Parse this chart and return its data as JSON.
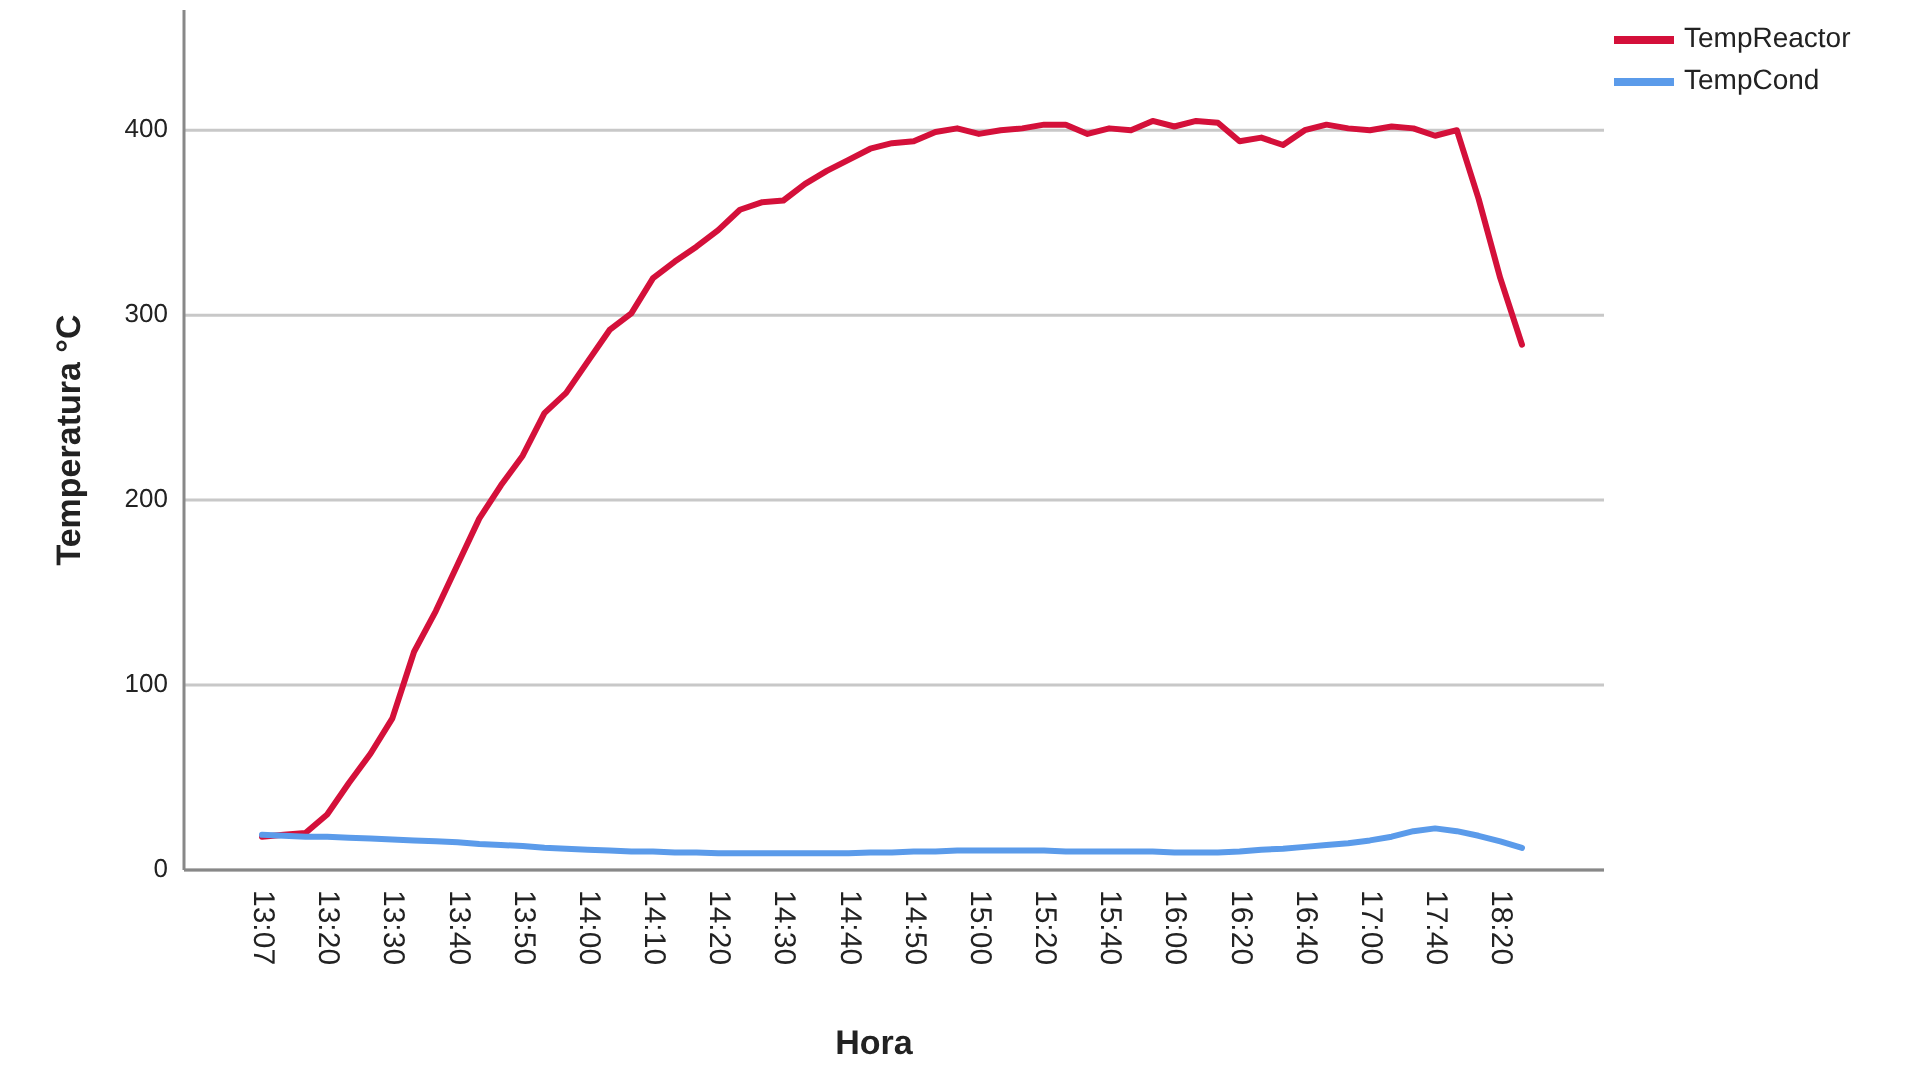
{
  "chart_data": {
    "type": "line",
    "xlabel": "Hora",
    "ylabel": "Temperatura °C",
    "categories": [
      "13:07",
      null,
      null,
      "13:20",
      null,
      null,
      "13:30",
      null,
      null,
      "13:40",
      null,
      null,
      "13:50",
      null,
      null,
      "14:00",
      null,
      null,
      "14:10",
      null,
      null,
      "14:20",
      null,
      null,
      "14:30",
      null,
      null,
      "14:40",
      null,
      null,
      "14:50",
      null,
      null,
      "15:00",
      null,
      null,
      "15:20",
      null,
      null,
      "15:40",
      null,
      null,
      "16:00",
      null,
      null,
      "16:20",
      null,
      null,
      "16:40",
      null,
      null,
      "17:00",
      null,
      null,
      "17:40",
      null,
      null,
      "18:20",
      null
    ],
    "series": [
      {
        "name": "TempReactor",
        "color": "#d4103a",
        "values": [
          18,
          19,
          20,
          30,
          47,
          63,
          82,
          118,
          140,
          165,
          190,
          208,
          224,
          247,
          258,
          275,
          292,
          301,
          320,
          329,
          337,
          346,
          357,
          361,
          362,
          371,
          378,
          384,
          390,
          393,
          394,
          399,
          401,
          398,
          400,
          401,
          403,
          403,
          398,
          401,
          400,
          405,
          402,
          405,
          404,
          394,
          396,
          392,
          400,
          403,
          401,
          400,
          402,
          401,
          397,
          400,
          363,
          320,
          284
        ]
      },
      {
        "name": "TempCond",
        "color": "#5b9bea",
        "values": [
          19,
          18.5,
          18,
          18,
          17.5,
          17,
          16.5,
          16,
          15.5,
          15,
          14,
          13.5,
          13,
          12,
          11.5,
          11,
          10.5,
          10,
          10,
          9.5,
          9.5,
          9,
          9,
          9,
          9,
          9,
          9,
          9,
          9.5,
          9.5,
          10,
          10,
          10.5,
          10.5,
          10.5,
          10.5,
          10.5,
          10,
          10,
          10,
          10,
          10,
          9.5,
          9.5,
          9.5,
          10,
          11,
          11.5,
          12.5,
          13.5,
          14.5,
          16,
          18,
          21,
          22.5,
          21,
          18.5,
          15.5,
          12
        ]
      }
    ],
    "ylim": [
      0,
      465
    ],
    "yticks": [
      0,
      100,
      200,
      300,
      400
    ],
    "grid": "y",
    "legend": "top right",
    "line_style": "solid",
    "marker": "none"
  }
}
